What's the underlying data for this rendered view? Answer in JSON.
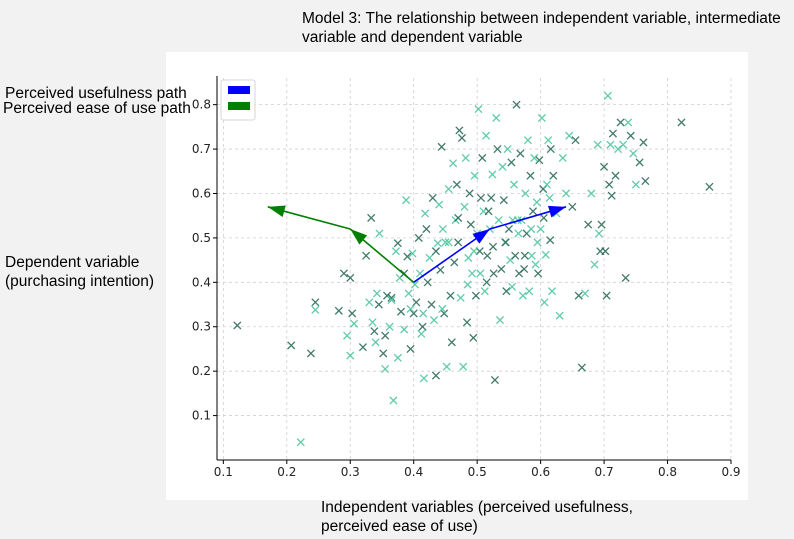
{
  "chart_data": {
    "type": "scatter",
    "title": "Model 3: The relationship between independent variable, intermediate\nvariable and dependent variable",
    "xlabel": "Independent variables (perceived usefulness,\nperceived ease of use)",
    "ylabel": "Dependent variable\n(purchasing intention)",
    "xlim": [
      0.09,
      0.9
    ],
    "ylim": [
      0.0,
      0.86
    ],
    "xticks": [
      "0.1",
      "0.2",
      "0.3",
      "0.4",
      "0.5",
      "0.6",
      "0.7",
      "0.8",
      "0.9"
    ],
    "yticks": [
      "0.1",
      "0.2",
      "0.3",
      "0.4",
      "0.5",
      "0.6",
      "0.7",
      "0.8"
    ],
    "grid": true,
    "legend": {
      "placement": "top-left",
      "entries": [
        {
          "label": "Perceived usefulness path",
          "color": "#0000ff"
        },
        {
          "label": "Perceived ease of use path",
          "color": "#008000"
        }
      ]
    },
    "marker_colors": [
      "#2e6b5a",
      "#4fc7a0"
    ],
    "path_colors": {
      "usefulness": "#0000ff",
      "ease_of_use": "#008000"
    },
    "paths": [
      {
        "name": "Perceived usefulness path",
        "color": "#0000ff",
        "points": [
          [
            0.4,
            0.4
          ],
          [
            0.52,
            0.52
          ],
          [
            0.64,
            0.57
          ]
        ]
      },
      {
        "name": "Perceived ease of use path",
        "color": "#008000",
        "points": [
          [
            0.4,
            0.4
          ],
          [
            0.3,
            0.52
          ],
          [
            0.17,
            0.57
          ]
        ]
      }
    ],
    "points": [
      [
        0.122,
        0.303,
        0
      ],
      [
        0.222,
        0.04,
        1
      ],
      [
        0.207,
        0.258,
        0
      ],
      [
        0.238,
        0.24,
        0
      ],
      [
        0.245,
        0.355,
        0
      ],
      [
        0.245,
        0.338,
        1
      ],
      [
        0.282,
        0.336,
        0
      ],
      [
        0.29,
        0.42,
        0
      ],
      [
        0.295,
        0.28,
        1
      ],
      [
        0.3,
        0.41,
        0
      ],
      [
        0.303,
        0.33,
        0
      ],
      [
        0.306,
        0.307,
        1
      ],
      [
        0.3,
        0.235,
        1
      ],
      [
        0.32,
        0.254,
        0
      ],
      [
        0.325,
        0.46,
        0
      ],
      [
        0.33,
        0.355,
        1
      ],
      [
        0.333,
        0.545,
        0
      ],
      [
        0.338,
        0.29,
        0
      ],
      [
        0.34,
        0.265,
        1
      ],
      [
        0.342,
        0.375,
        1
      ],
      [
        0.346,
        0.51,
        1
      ],
      [
        0.352,
        0.24,
        0
      ],
      [
        0.355,
        0.205,
        1
      ],
      [
        0.358,
        0.37,
        0
      ],
      [
        0.362,
        0.3,
        1
      ],
      [
        0.365,
        0.365,
        0
      ],
      [
        0.368,
        0.134,
        1
      ],
      [
        0.372,
        0.47,
        1
      ],
      [
        0.375,
        0.488,
        0
      ],
      [
        0.378,
        0.41,
        1
      ],
      [
        0.38,
        0.334,
        0
      ],
      [
        0.385,
        0.294,
        1
      ],
      [
        0.388,
        0.585,
        1
      ],
      [
        0.39,
        0.458,
        0
      ],
      [
        0.392,
        0.375,
        1
      ],
      [
        0.395,
        0.25,
        0
      ],
      [
        0.398,
        0.465,
        1
      ],
      [
        0.4,
        0.33,
        0
      ],
      [
        0.402,
        0.395,
        1
      ],
      [
        0.404,
        0.355,
        0
      ],
      [
        0.408,
        0.5,
        0
      ],
      [
        0.41,
        0.42,
        1
      ],
      [
        0.412,
        0.284,
        1
      ],
      [
        0.414,
        0.3,
        0
      ],
      [
        0.416,
        0.184,
        1
      ],
      [
        0.418,
        0.555,
        1
      ],
      [
        0.42,
        0.52,
        0
      ],
      [
        0.422,
        0.4,
        0
      ],
      [
        0.425,
        0.455,
        1
      ],
      [
        0.428,
        0.35,
        0
      ],
      [
        0.43,
        0.59,
        0
      ],
      [
        0.432,
        0.315,
        1
      ],
      [
        0.435,
        0.19,
        0
      ],
      [
        0.438,
        0.488,
        1
      ],
      [
        0.44,
        0.575,
        1
      ],
      [
        0.442,
        0.428,
        0
      ],
      [
        0.444,
        0.705,
        0
      ],
      [
        0.446,
        0.52,
        1
      ],
      [
        0.448,
        0.33,
        0
      ],
      [
        0.45,
        0.49,
        1
      ],
      [
        0.452,
        0.21,
        1
      ],
      [
        0.455,
        0.61,
        1
      ],
      [
        0.458,
        0.37,
        0
      ],
      [
        0.46,
        0.265,
        0
      ],
      [
        0.462,
        0.668,
        1
      ],
      [
        0.464,
        0.445,
        0
      ],
      [
        0.466,
        0.54,
        1
      ],
      [
        0.468,
        0.62,
        0
      ],
      [
        0.47,
        0.49,
        0
      ],
      [
        0.472,
        0.742,
        0
      ],
      [
        0.474,
        0.365,
        1
      ],
      [
        0.476,
        0.725,
        0
      ],
      [
        0.478,
        0.21,
        1
      ],
      [
        0.48,
        0.57,
        1
      ],
      [
        0.482,
        0.68,
        1
      ],
      [
        0.484,
        0.31,
        0
      ],
      [
        0.486,
        0.455,
        1
      ],
      [
        0.488,
        0.6,
        0
      ],
      [
        0.49,
        0.53,
        0
      ],
      [
        0.492,
        0.42,
        1
      ],
      [
        0.494,
        0.275,
        0
      ],
      [
        0.496,
        0.64,
        1
      ],
      [
        0.498,
        0.37,
        0
      ],
      [
        0.5,
        0.51,
        1
      ],
      [
        0.502,
        0.79,
        1
      ],
      [
        0.504,
        0.47,
        0
      ],
      [
        0.506,
        0.59,
        0
      ],
      [
        0.508,
        0.68,
        0
      ],
      [
        0.51,
        0.56,
        1
      ],
      [
        0.512,
        0.38,
        1
      ],
      [
        0.514,
        0.73,
        1
      ],
      [
        0.516,
        0.46,
        0
      ],
      [
        0.518,
        0.56,
        0
      ],
      [
        0.52,
        0.52,
        1
      ],
      [
        0.522,
        0.59,
        0
      ],
      [
        0.524,
        0.643,
        1
      ],
      [
        0.526,
        0.42,
        0
      ],
      [
        0.528,
        0.18,
        0
      ],
      [
        0.53,
        0.77,
        1
      ],
      [
        0.532,
        0.7,
        0
      ],
      [
        0.534,
        0.54,
        1
      ],
      [
        0.536,
        0.315,
        1
      ],
      [
        0.538,
        0.43,
        0
      ],
      [
        0.54,
        0.66,
        1
      ],
      [
        0.542,
        0.585,
        0
      ],
      [
        0.544,
        0.49,
        1
      ],
      [
        0.546,
        0.38,
        0
      ],
      [
        0.548,
        0.7,
        1
      ],
      [
        0.55,
        0.52,
        0
      ],
      [
        0.552,
        0.45,
        1
      ],
      [
        0.554,
        0.67,
        0
      ],
      [
        0.556,
        0.54,
        1
      ],
      [
        0.558,
        0.62,
        1
      ],
      [
        0.56,
        0.46,
        0
      ],
      [
        0.562,
        0.8,
        0
      ],
      [
        0.564,
        0.54,
        1
      ],
      [
        0.566,
        0.42,
        0
      ],
      [
        0.568,
        0.69,
        0
      ],
      [
        0.57,
        0.54,
        1
      ],
      [
        0.572,
        0.37,
        1
      ],
      [
        0.574,
        0.43,
        0
      ],
      [
        0.576,
        0.6,
        1
      ],
      [
        0.578,
        0.51,
        0
      ],
      [
        0.58,
        0.72,
        1
      ],
      [
        0.582,
        0.38,
        1
      ],
      [
        0.584,
        0.64,
        0
      ],
      [
        0.586,
        0.46,
        1
      ],
      [
        0.588,
        0.56,
        0
      ],
      [
        0.59,
        0.68,
        1
      ],
      [
        0.592,
        0.44,
        1
      ],
      [
        0.594,
        0.58,
        1
      ],
      [
        0.596,
        0.42,
        0
      ],
      [
        0.598,
        0.675,
        0
      ],
      [
        0.6,
        0.52,
        1
      ],
      [
        0.602,
        0.77,
        1
      ],
      [
        0.604,
        0.61,
        0
      ],
      [
        0.606,
        0.355,
        1
      ],
      [
        0.608,
        0.462,
        1
      ],
      [
        0.61,
        0.62,
        1
      ],
      [
        0.612,
        0.72,
        1
      ],
      [
        0.614,
        0.59,
        1
      ],
      [
        0.616,
        0.7,
        0
      ],
      [
        0.618,
        0.38,
        1
      ],
      [
        0.62,
        0.64,
        0
      ],
      [
        0.625,
        0.555,
        1
      ],
      [
        0.63,
        0.325,
        1
      ],
      [
        0.635,
        0.68,
        1
      ],
      [
        0.64,
        0.6,
        1
      ],
      [
        0.645,
        0.73,
        1
      ],
      [
        0.65,
        0.57,
        0
      ],
      [
        0.655,
        0.72,
        0
      ],
      [
        0.66,
        0.37,
        0
      ],
      [
        0.665,
        0.208,
        0
      ],
      [
        0.67,
        0.375,
        1
      ],
      [
        0.675,
        0.53,
        0
      ],
      [
        0.68,
        0.6,
        1
      ],
      [
        0.685,
        0.44,
        1
      ],
      [
        0.69,
        0.71,
        1
      ],
      [
        0.692,
        0.51,
        1
      ],
      [
        0.694,
        0.47,
        0
      ],
      [
        0.696,
        0.53,
        0
      ],
      [
        0.7,
        0.66,
        0
      ],
      [
        0.702,
        0.47,
        0
      ],
      [
        0.704,
        0.37,
        0
      ],
      [
        0.706,
        0.82,
        1
      ],
      [
        0.708,
        0.62,
        0
      ],
      [
        0.71,
        0.71,
        1
      ],
      [
        0.712,
        0.595,
        0
      ],
      [
        0.714,
        0.735,
        0
      ],
      [
        0.718,
        0.64,
        0
      ],
      [
        0.722,
        0.7,
        1
      ],
      [
        0.726,
        0.76,
        0
      ],
      [
        0.73,
        0.71,
        1
      ],
      [
        0.734,
        0.41,
        0
      ],
      [
        0.738,
        0.76,
        1
      ],
      [
        0.742,
        0.73,
        0
      ],
      [
        0.746,
        0.69,
        1
      ],
      [
        0.75,
        0.62,
        1
      ],
      [
        0.756,
        0.67,
        0
      ],
      [
        0.762,
        0.715,
        0
      ],
      [
        0.765,
        0.628,
        0
      ],
      [
        0.822,
        0.76,
        0
      ],
      [
        0.866,
        0.615,
        0
      ],
      [
        0.395,
        0.34,
        1
      ],
      [
        0.445,
        0.34,
        1
      ],
      [
        0.485,
        0.395,
        1
      ],
      [
        0.525,
        0.48,
        0
      ],
      [
        0.565,
        0.51,
        1
      ],
      [
        0.47,
        0.545,
        0
      ],
      [
        0.455,
        0.49,
        1
      ],
      [
        0.435,
        0.47,
        0
      ],
      [
        0.415,
        0.33,
        1
      ],
      [
        0.505,
        0.42,
        1
      ],
      [
        0.545,
        0.49,
        0
      ],
      [
        0.585,
        0.52,
        1
      ],
      [
        0.615,
        0.495,
        0
      ],
      [
        0.375,
        0.23,
        1
      ],
      [
        0.355,
        0.28,
        0
      ],
      [
        0.335,
        0.31,
        1
      ],
      [
        0.345,
        0.35,
        0
      ],
      [
        0.365,
        0.36,
        1
      ],
      [
        0.385,
        0.42,
        0
      ],
      [
        0.495,
        0.47,
        1
      ],
      [
        0.515,
        0.4,
        0
      ],
      [
        0.555,
        0.39,
        1
      ],
      [
        0.575,
        0.46,
        0
      ],
      [
        0.595,
        0.49,
        1
      ],
      [
        0.605,
        0.545,
        0
      ]
    ]
  }
}
